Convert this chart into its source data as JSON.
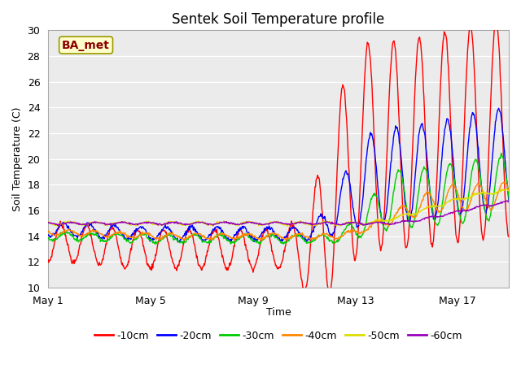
{
  "title": "Sentek Soil Temperature profile",
  "xlabel": "Time",
  "ylabel": "Soil Temperature (C)",
  "ylim": [
    10,
    30
  ],
  "yticks": [
    10,
    12,
    14,
    16,
    18,
    20,
    22,
    24,
    26,
    28,
    30
  ],
  "fig_bg_color": "#ffffff",
  "plot_bg_color": "#ebebeb",
  "annotation_text": "BA_met",
  "annotation_color": "#8b0000",
  "annotation_bg": "#ffffcc",
  "annotation_border": "#999900",
  "series_colors": [
    "#ff0000",
    "#0000ff",
    "#00cc00",
    "#ff8800",
    "#dddd00",
    "#9900bb"
  ],
  "series_labels": [
    "-10cm",
    "-20cm",
    "-30cm",
    "-40cm",
    "-50cm",
    "-60cm"
  ],
  "x_tick_labels": [
    "May 1",
    "May 5",
    "May 9",
    "May 13",
    "May 17"
  ],
  "x_tick_positions": [
    0,
    4,
    8,
    12,
    16
  ],
  "num_days": 19,
  "pts_per_day": 48
}
